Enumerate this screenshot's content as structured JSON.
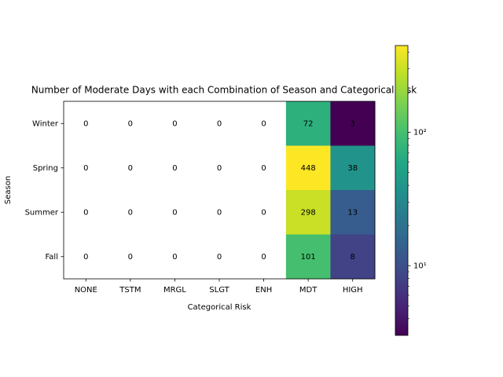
{
  "chart_data": {
    "type": "heatmap",
    "title": "Number of Moderate Days with each Combination of Season and Categorical Risk",
    "x_label": "Categorical Risk",
    "y_label": "Season",
    "x_categories": [
      "NONE",
      "TSTM",
      "MRGL",
      "SLGT",
      "ENH",
      "MDT",
      "HIGH"
    ],
    "y_categories": [
      "Winter",
      "Spring",
      "Summer",
      "Fall"
    ],
    "values": [
      [
        0,
        0,
        0,
        0,
        0,
        72,
        3
      ],
      [
        0,
        0,
        0,
        0,
        0,
        448,
        38
      ],
      [
        0,
        0,
        0,
        0,
        0,
        298,
        13
      ],
      [
        0,
        0,
        0,
        0,
        0,
        101,
        8
      ]
    ],
    "colormap": "viridis",
    "color_scale": "log",
    "clim": [
      3,
      448
    ],
    "cticks": [
      {
        "value": 10,
        "label": "10¹"
      },
      {
        "value": 100,
        "label": "10²"
      }
    ],
    "cminor_ticks": [
      4,
      5,
      6,
      7,
      8,
      9,
      20,
      30,
      40,
      50,
      60,
      70,
      80,
      90,
      200,
      300,
      400
    ]
  }
}
